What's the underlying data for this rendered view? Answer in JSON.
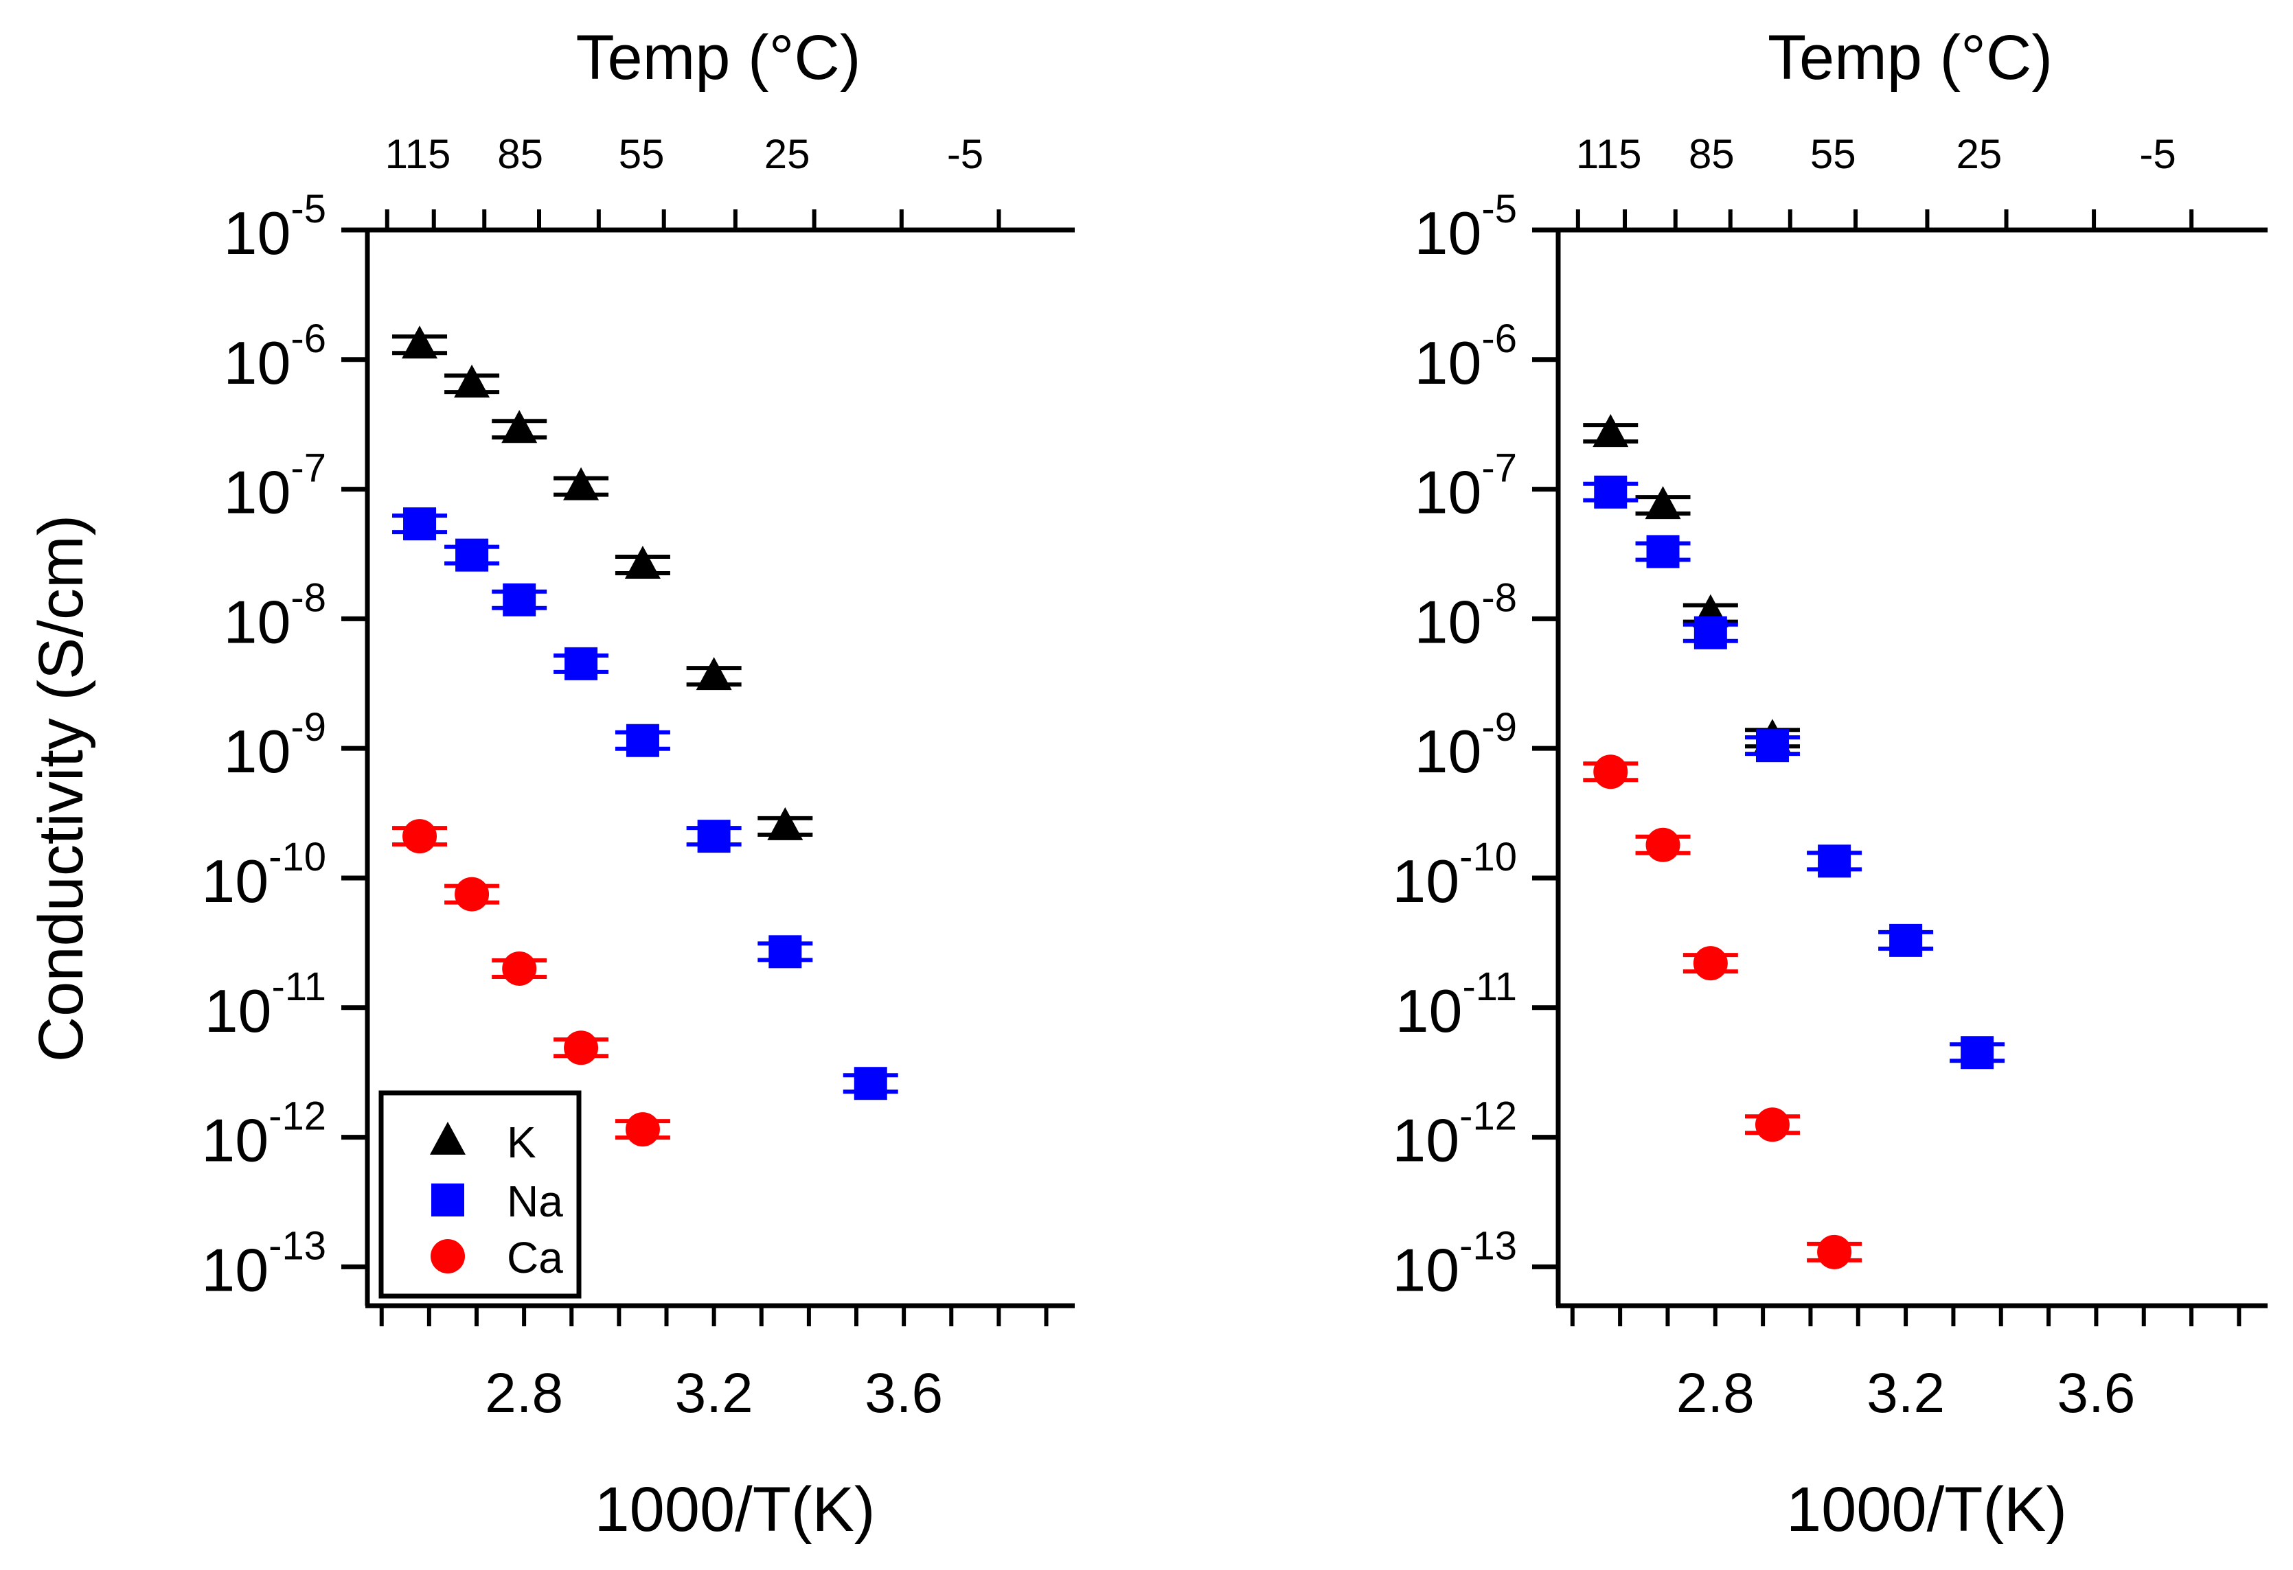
{
  "colors": {
    "K": "#000000",
    "Na": "#0000ff",
    "Ca": "#ff0000",
    "axis": "#000000"
  },
  "chart_data": [
    {
      "type": "scatter",
      "panel": "left",
      "xlabel": "1000/T(K)",
      "ylabel": "Conductivity (S/cm)",
      "top_axis_label": "Temp (°C)",
      "yscale": "log",
      "xlim": [
        2.47,
        3.96
      ],
      "ylim_exponent": [
        -13.3,
        -5
      ],
      "x_ticks": [
        2.8,
        3.2,
        3.6
      ],
      "y_tick_exponents": [
        -5,
        -6,
        -7,
        -8,
        -9,
        -10,
        -11,
        -12,
        -13
      ],
      "top_ticks_celsius": [
        115,
        85,
        55,
        25,
        -5
      ],
      "legend": [
        "K",
        "Na",
        "Ca"
      ],
      "legend_position": "bottom-left",
      "series": [
        {
          "name": "K",
          "marker": "triangle",
          "x": [
            2.58,
            2.69,
            2.79,
            2.92,
            3.05,
            3.2,
            3.35
          ],
          "y": [
            1.3e-06,
            6.5e-07,
            2.9e-07,
            1.05e-07,
            2.6e-08,
            3.6e-09,
            2.5e-10
          ]
        },
        {
          "name": "Na",
          "marker": "square",
          "x": [
            2.58,
            2.69,
            2.79,
            2.92,
            3.05,
            3.2,
            3.35,
            3.53
          ],
          "y": [
            5.4e-08,
            3.1e-08,
            1.4e-08,
            4.5e-09,
            1.15e-09,
            2.1e-10,
            2.7e-11,
            2.6e-12
          ]
        },
        {
          "name": "Ca",
          "marker": "circle",
          "x": [
            2.58,
            2.69,
            2.79,
            2.92,
            3.05
          ],
          "y": [
            2.1e-10,
            7.5e-11,
            2e-11,
            4.9e-12,
            1.15e-12
          ]
        }
      ]
    },
    {
      "type": "scatter",
      "panel": "right",
      "xlabel": "1000/T(K)",
      "ylabel": "",
      "top_axis_label": "Temp (°C)",
      "yscale": "log",
      "xlim": [
        2.47,
        3.96
      ],
      "ylim_exponent": [
        -13.3,
        -5
      ],
      "x_ticks": [
        2.8,
        3.2,
        3.6
      ],
      "y_tick_exponents": [
        -5,
        -6,
        -7,
        -8,
        -9,
        -10,
        -11,
        -12,
        -13
      ],
      "top_ticks_celsius": [
        115,
        85,
        55,
        25,
        -5
      ],
      "series": [
        {
          "name": "K",
          "marker": "triangle",
          "x": [
            2.58,
            2.69,
            2.79,
            2.92
          ],
          "y": [
            2.7e-07,
            7.5e-08,
            1.1e-08,
            1.2e-09
          ]
        },
        {
          "name": "Na",
          "marker": "square",
          "x": [
            2.58,
            2.69,
            2.79,
            2.92,
            3.05,
            3.2,
            3.35
          ],
          "y": [
            9.5e-08,
            3.3e-08,
            7.8e-09,
            1.05e-09,
            1.35e-10,
            3.3e-11,
            4.5e-12
          ]
        },
        {
          "name": "Ca",
          "marker": "circle",
          "x": [
            2.58,
            2.69,
            2.79,
            2.92,
            3.05
          ],
          "y": [
            6.6e-10,
            1.8e-10,
            2.2e-11,
            1.25e-12,
            1.3e-13
          ]
        }
      ]
    }
  ]
}
